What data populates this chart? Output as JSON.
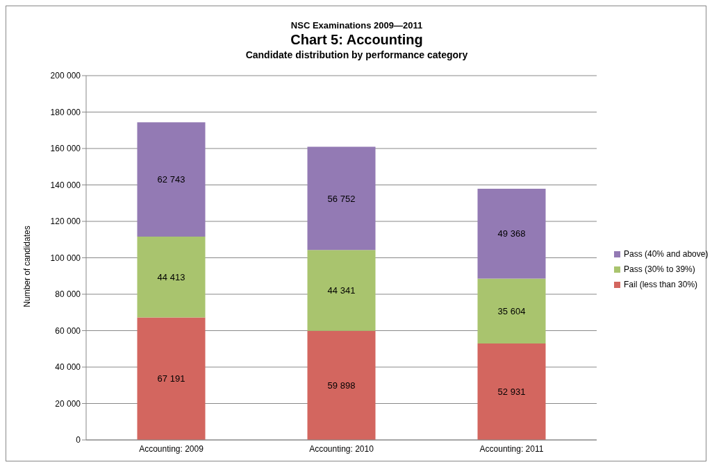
{
  "chart_data": {
    "type": "bar",
    "title": "Chart 5: Accounting",
    "subtitle": "Candidate distribution by performance category",
    "annotations": [
      "NSC Examinations 2009—2011"
    ],
    "ylabel": "Number of candidates",
    "categories": [
      "Accounting: 2009",
      "Accounting: 2010",
      "Accounting: 2011"
    ],
    "stacked": true,
    "series": [
      {
        "name": "Fail (less than 30%)",
        "color": "#d3665f",
        "values": [
          67191,
          59898,
          52931
        ],
        "value_labels": [
          "67 191",
          "59 898",
          "52 931"
        ]
      },
      {
        "name": "Pass (30% to 39%)",
        "color": "#a9c46e",
        "values": [
          44413,
          44341,
          35604
        ],
        "value_labels": [
          "44 413",
          "44 341",
          "35 604"
        ]
      },
      {
        "name": "Pass (40% and above)",
        "color": "#937ab4",
        "values": [
          62743,
          56752,
          49368
        ],
        "value_labels": [
          "62 743",
          "56 752",
          "49 368"
        ]
      }
    ],
    "ylim": [
      0,
      200000
    ],
    "yticks": [
      0,
      {
        "value": 20000,
        "label": "20 000"
      },
      {
        "value": 40000,
        "label": "40 000"
      },
      {
        "value": 60000,
        "label": "60 000"
      },
      {
        "value": 80000,
        "label": "80 000"
      },
      {
        "value": 100000,
        "label": "100 000"
      },
      {
        "value": 120000,
        "label": "120 000"
      },
      {
        "value": 140000,
        "label": "140 000"
      },
      {
        "value": 160000,
        "label": "160 000"
      },
      {
        "value": 180000,
        "label": "180 000"
      },
      {
        "value": 200000,
        "label": "200 000"
      }
    ],
    "grid": "y",
    "legend": "right"
  }
}
